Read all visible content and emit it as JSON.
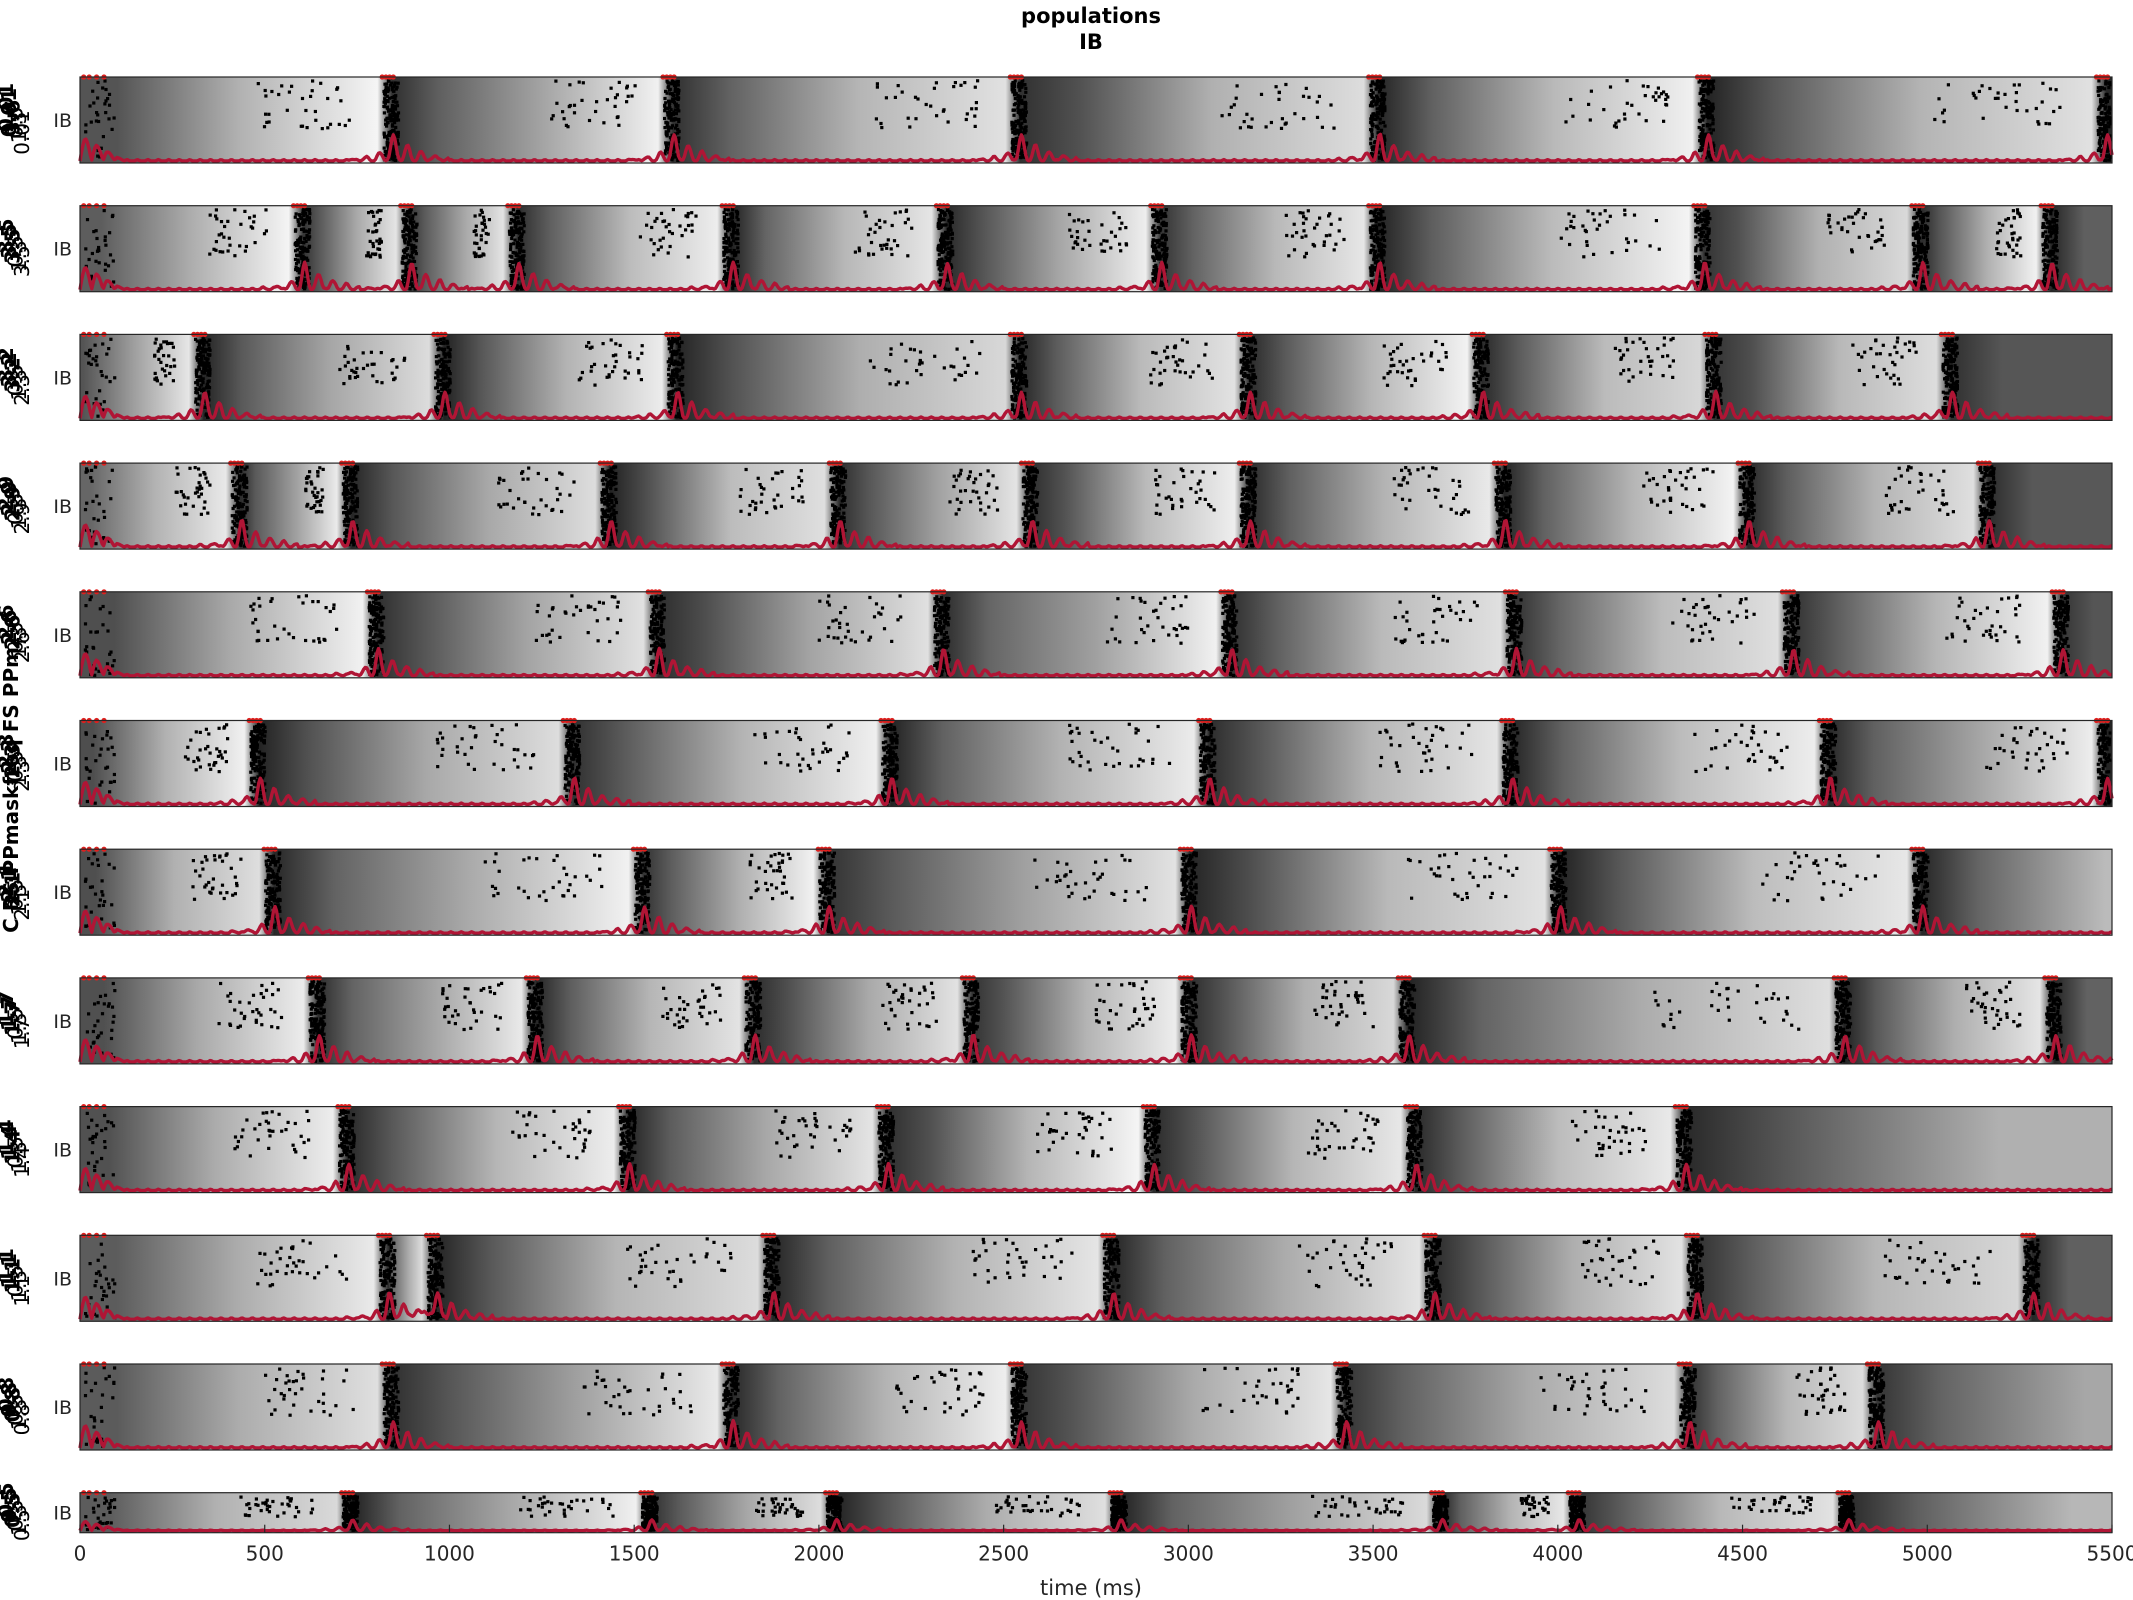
{
  "figure": {
    "title_line1": "populations",
    "title_line2": "IB",
    "ylabel": "C RS PPmaskfreq FS PPm",
    "xlabel": "time (ms)"
  },
  "chart_data": {
    "type": "raster-with-trace",
    "title": "populations\nIB",
    "xlabel": "time (ms)",
    "ylabel": "C RS PPmaskfreq FS PPm",
    "xlim": [
      0,
      5500
    ],
    "xticks": [
      0,
      500,
      1000,
      1500,
      2000,
      2500,
      3000,
      3500,
      4000,
      4500,
      5000,
      5500
    ],
    "panel_ylabel": "IB",
    "trace_color": "#b01535",
    "spike_color": "#000000",
    "background_colormap": "grayscale",
    "panels": [
      {
        "param_labels": [
          "0.01",
          "0.01",
          "3.6",
          "0.5",
          "1.3",
          "0.01"
        ],
        "bursts": [
          830,
          1590,
          2530,
          3500,
          4390,
          5470
        ]
      },
      {
        "param_labels": [
          "3.5",
          "3.5",
          "3.5",
          "0.5",
          "1.3",
          "3.5"
        ],
        "bursts": [
          590,
          880,
          1170,
          1750,
          2330,
          2910,
          3500,
          4380,
          4970,
          5320
        ]
      },
      {
        "param_labels": [
          "3.2",
          "3.2",
          "3.2",
          "0.5",
          "1.3",
          "2.3"
        ],
        "bursts": [
          320,
          970,
          1600,
          2530,
          3150,
          3780,
          4410,
          5050
        ]
      },
      {
        "param_labels": [
          "2.9",
          "2.9",
          "2.9",
          "0.5",
          "1.3",
          "2.9"
        ],
        "bursts": [
          420,
          720,
          1420,
          2040,
          2560,
          3150,
          3840,
          4500,
          5150
        ]
      },
      {
        "param_labels": [
          "2.6",
          "2.6",
          "2.6",
          "0.5",
          "1.3",
          "2.6"
        ],
        "bursts": [
          790,
          1550,
          2320,
          3100,
          3870,
          4620,
          5350
        ]
      },
      {
        "param_labels": [
          "2.3",
          "2.3",
          "2.3",
          "0.5",
          "1.3",
          "2.3"
        ],
        "bursts": [
          470,
          1320,
          2180,
          3040,
          3860,
          4720,
          5470
        ]
      },
      {
        "param_labels": [
          "2.1",
          "2.1",
          "2.1",
          "0.5",
          "1.3",
          "2.1"
        ],
        "bursts": [
          510,
          1510,
          2010,
          2990,
          3990,
          4970
        ]
      },
      {
        "param_labels": [
          "1.7",
          "1.7",
          "1.7",
          "0.5",
          "1.3",
          "1.7"
        ],
        "bursts": [
          630,
          1220,
          1810,
          2400,
          2990,
          3580,
          4760,
          5330
        ]
      },
      {
        "param_labels": [
          "1.4",
          "1.4",
          "1.4",
          "0.5",
          "1.3",
          "1.4"
        ],
        "bursts": [
          710,
          1470,
          2170,
          2890,
          3600,
          4330
        ]
      },
      {
        "param_labels": [
          "1.1",
          "1.1",
          "1.1",
          "0.5",
          "1.3",
          "1.1"
        ],
        "bursts": [
          820,
          950,
          1860,
          2780,
          3650,
          4360,
          5270
        ]
      },
      {
        "param_labels": [
          "0.8",
          "0.8",
          "0.8",
          "0.5",
          "1.3",
          "0.8"
        ],
        "bursts": [
          830,
          1750,
          2530,
          3410,
          4340,
          4850
        ]
      },
      {
        "param_labels": [
          "0.5",
          "0.5",
          "0.5",
          "0.5",
          "1.3",
          "0.5"
        ],
        "bursts": [
          720,
          1530,
          2030,
          2800,
          3670,
          4040,
          4770
        ]
      }
    ]
  }
}
